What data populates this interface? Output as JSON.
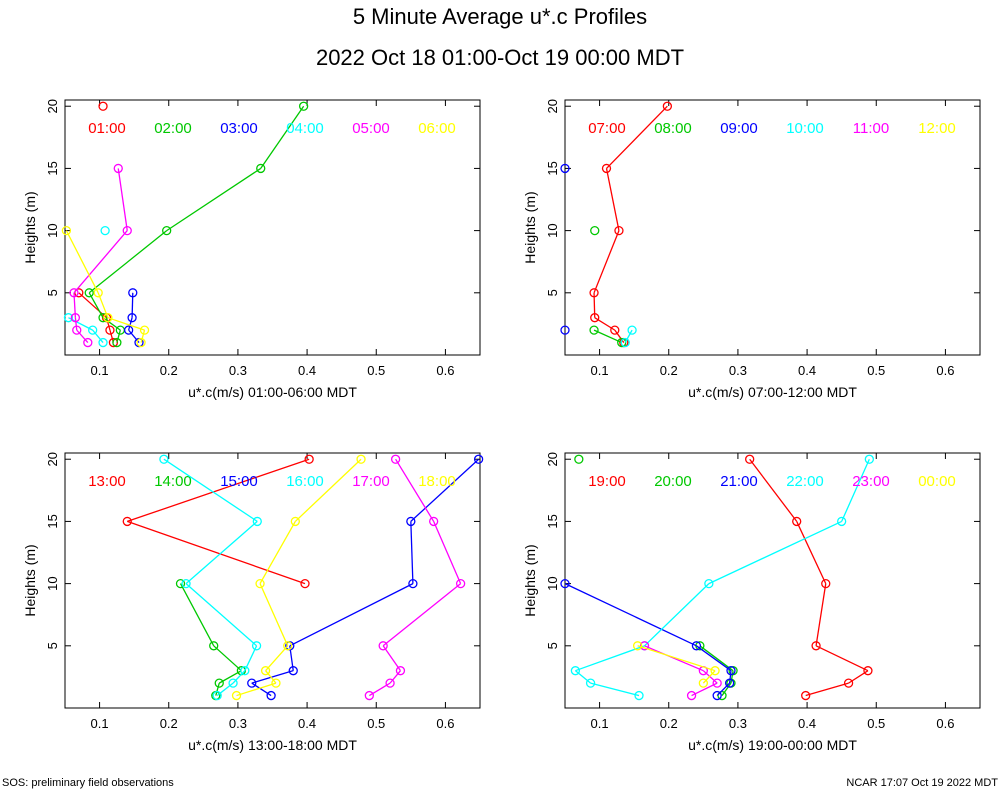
{
  "title": "5 Minute Average u*.c Profiles",
  "subtitle": "2022 Oct 18 01:00-Oct 19 00:00 MDT",
  "footer_left": "SOS: preliminary field observations",
  "footer_right": "NCAR 17:07 Oct 19 2022 MDT",
  "colors": [
    "#ff0000",
    "#00c800",
    "#0000ff",
    "#00ffff",
    "#ff00ff",
    "#ffff00"
  ],
  "chart_data": [
    {
      "type": "line",
      "xlabel": "u*.c(m/s) 01:00-06:00 MDT",
      "ylabel": "Heights (m)",
      "xlim": [
        0.05,
        0.65
      ],
      "ylim": [
        0,
        20.5
      ],
      "xticks": [
        "0.1",
        "0.2",
        "0.3",
        "0.4",
        "0.5",
        "0.6"
      ],
      "yticks": [
        "5",
        "10",
        "15",
        "20"
      ],
      "series": [
        {
          "name": "01:00",
          "points": [
            [
              0.12,
              1
            ],
            [
              0.115,
              2
            ],
            [
              0.11,
              3
            ],
            [
              0.07,
              5
            ],
            [
              null,
              10
            ],
            [
              null,
              15
            ],
            [
              0.105,
              20
            ]
          ]
        },
        {
          "name": "02:00",
          "points": [
            [
              0.125,
              1
            ],
            [
              0.13,
              2
            ],
            [
              0.105,
              3
            ],
            [
              0.085,
              5
            ],
            [
              0.197,
              10
            ],
            [
              0.333,
              15
            ],
            [
              0.395,
              20
            ]
          ]
        },
        {
          "name": "03:00",
          "points": [
            [
              0.157,
              1
            ],
            [
              0.142,
              2
            ],
            [
              0.147,
              3
            ],
            [
              0.148,
              5
            ],
            [
              null,
              10
            ],
            [
              null,
              15
            ],
            [
              null,
              20
            ]
          ]
        },
        {
          "name": "04:00",
          "points": [
            [
              0.105,
              1
            ],
            [
              0.09,
              2
            ],
            [
              0.055,
              3
            ],
            [
              null,
              5
            ],
            [
              0.108,
              10
            ],
            [
              null,
              15
            ],
            [
              null,
              20
            ]
          ]
        },
        {
          "name": "05:00",
          "points": [
            [
              0.083,
              1
            ],
            [
              0.067,
              2
            ],
            [
              0.065,
              3
            ],
            [
              0.063,
              5
            ],
            [
              0.14,
              10
            ],
            [
              0.127,
              15
            ],
            [
              null,
              20
            ]
          ]
        },
        {
          "name": "06:00",
          "points": [
            [
              0.16,
              1
            ],
            [
              0.165,
              2
            ],
            [
              0.112,
              3
            ],
            [
              0.098,
              5
            ],
            [
              0.052,
              10
            ],
            [
              null,
              15
            ],
            [
              null,
              20
            ]
          ]
        }
      ]
    },
    {
      "type": "line",
      "xlabel": "u*.c(m/s) 07:00-12:00 MDT",
      "ylabel": "Heights (m)",
      "xlim": [
        0.05,
        0.65
      ],
      "ylim": [
        0,
        20.5
      ],
      "xticks": [
        "0.1",
        "0.2",
        "0.3",
        "0.4",
        "0.5",
        "0.6"
      ],
      "yticks": [
        "5",
        "10",
        "15",
        "20"
      ],
      "series": [
        {
          "name": "07:00",
          "points": [
            [
              0.135,
              1
            ],
            [
              0.122,
              2
            ],
            [
              0.093,
              3
            ],
            [
              0.092,
              5
            ],
            [
              0.128,
              10
            ],
            [
              0.11,
              15
            ],
            [
              0.198,
              20
            ]
          ]
        },
        {
          "name": "08:00",
          "points": [
            [
              0.132,
              1
            ],
            [
              0.092,
              2
            ],
            [
              null,
              3
            ],
            [
              null,
              5
            ],
            [
              0.093,
              10
            ],
            [
              null,
              15
            ],
            [
              null,
              20
            ]
          ]
        },
        {
          "name": "09:00",
          "points": [
            [
              null,
              1
            ],
            [
              0.05,
              2
            ],
            [
              null,
              3
            ],
            [
              null,
              5
            ],
            [
              null,
              10
            ],
            [
              0.05,
              15
            ],
            [
              null,
              20
            ]
          ]
        },
        {
          "name": "10:00",
          "points": [
            [
              0.137,
              1
            ],
            [
              0.147,
              2
            ],
            [
              null,
              3
            ],
            [
              null,
              5
            ],
            [
              null,
              10
            ],
            [
              null,
              15
            ],
            [
              null,
              20
            ]
          ]
        },
        {
          "name": "11:00",
          "points": []
        },
        {
          "name": "12:00",
          "points": []
        }
      ]
    },
    {
      "type": "line",
      "xlabel": "u*.c(m/s) 13:00-18:00 MDT",
      "ylabel": "Heights (m)",
      "xlim": [
        0.05,
        0.65
      ],
      "ylim": [
        0,
        20.5
      ],
      "xticks": [
        "0.1",
        "0.2",
        "0.3",
        "0.4",
        "0.5",
        "0.6"
      ],
      "yticks": [
        "5",
        "10",
        "15",
        "20"
      ],
      "series": [
        {
          "name": "13:00",
          "points": [
            [
              null,
              1
            ],
            [
              null,
              2
            ],
            [
              null,
              3
            ],
            [
              null,
              5
            ],
            [
              0.397,
              10
            ],
            [
              0.14,
              15
            ],
            [
              0.403,
              20
            ]
          ]
        },
        {
          "name": "14:00",
          "points": [
            [
              0.268,
              1
            ],
            [
              0.273,
              2
            ],
            [
              0.305,
              3
            ],
            [
              0.265,
              5
            ],
            [
              0.217,
              10
            ],
            [
              null,
              15
            ],
            [
              null,
              20
            ]
          ]
        },
        {
          "name": "15:00",
          "points": [
            [
              0.348,
              1
            ],
            [
              0.32,
              2
            ],
            [
              0.38,
              3
            ],
            [
              0.375,
              5
            ],
            [
              0.553,
              10
            ],
            [
              0.55,
              15
            ],
            [
              0.648,
              20
            ]
          ]
        },
        {
          "name": "16:00",
          "points": [
            [
              0.27,
              1
            ],
            [
              0.293,
              2
            ],
            [
              0.31,
              3
            ],
            [
              0.327,
              5
            ],
            [
              0.225,
              10
            ],
            [
              0.328,
              15
            ],
            [
              0.193,
              20
            ]
          ]
        },
        {
          "name": "17:00",
          "points": [
            [
              0.49,
              1
            ],
            [
              0.52,
              2
            ],
            [
              0.535,
              3
            ],
            [
              0.51,
              5
            ],
            [
              0.622,
              10
            ],
            [
              0.583,
              15
            ],
            [
              0.528,
              20
            ]
          ]
        },
        {
          "name": "18:00",
          "points": [
            [
              0.298,
              1
            ],
            [
              0.355,
              2
            ],
            [
              0.34,
              3
            ],
            [
              0.372,
              5
            ],
            [
              0.332,
              10
            ],
            [
              0.383,
              15
            ],
            [
              0.478,
              20
            ]
          ]
        }
      ]
    },
    {
      "type": "line",
      "xlabel": "u*.c(m/s) 19:00-00:00 MDT",
      "ylabel": "Heights (m)",
      "xlim": [
        0.05,
        0.65
      ],
      "ylim": [
        0,
        20.5
      ],
      "xticks": [
        "0.1",
        "0.2",
        "0.3",
        "0.4",
        "0.5",
        "0.6"
      ],
      "yticks": [
        "5",
        "10",
        "15",
        "20"
      ],
      "series": [
        {
          "name": "19:00",
          "points": [
            [
              0.398,
              1
            ],
            [
              0.46,
              2
            ],
            [
              0.488,
              3
            ],
            [
              0.413,
              5
            ],
            [
              0.427,
              10
            ],
            [
              0.385,
              15
            ],
            [
              0.317,
              20
            ]
          ]
        },
        {
          "name": "20:00",
          "points": [
            [
              0.277,
              1
            ],
            [
              0.29,
              2
            ],
            [
              0.293,
              3
            ],
            [
              0.245,
              5
            ],
            [
              null,
              10
            ],
            [
              null,
              15
            ],
            [
              0.07,
              20
            ]
          ]
        },
        {
          "name": "21:00",
          "points": [
            [
              0.27,
              1
            ],
            [
              0.288,
              2
            ],
            [
              0.29,
              3
            ],
            [
              0.24,
              5
            ],
            [
              0.05,
              10
            ],
            [
              null,
              15
            ],
            [
              null,
              20
            ]
          ]
        },
        {
          "name": "22:00",
          "points": [
            [
              0.157,
              1
            ],
            [
              0.087,
              2
            ],
            [
              0.065,
              3
            ],
            [
              0.165,
              5
            ],
            [
              0.258,
              10
            ],
            [
              0.45,
              15
            ],
            [
              0.49,
              20
            ]
          ]
        },
        {
          "name": "23:00",
          "points": [
            [
              0.233,
              1
            ],
            [
              0.27,
              2
            ],
            [
              0.25,
              3
            ],
            [
              0.165,
              5
            ],
            [
              null,
              10
            ],
            [
              null,
              15
            ],
            [
              null,
              20
            ]
          ]
        },
        {
          "name": "00:00",
          "points": [
            [
              null,
              1
            ],
            [
              0.25,
              2
            ],
            [
              0.267,
              3
            ],
            [
              0.155,
              5
            ],
            [
              null,
              10
            ],
            [
              null,
              15
            ],
            [
              null,
              20
            ]
          ]
        }
      ]
    }
  ]
}
